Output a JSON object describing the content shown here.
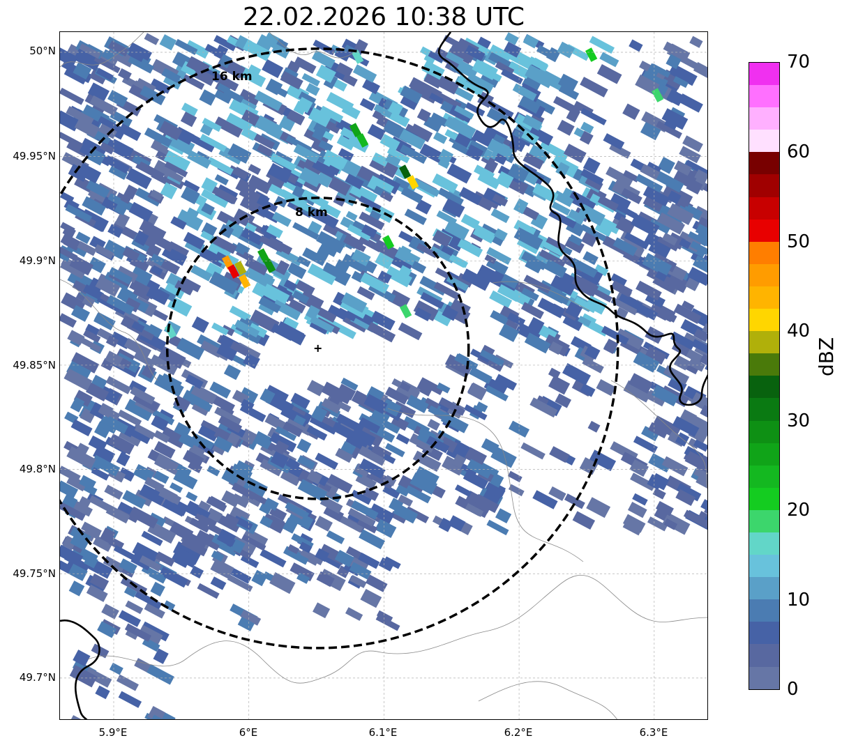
{
  "title": "22.02.2026 10:38 UTC",
  "map": {
    "center_lon": 6.095,
    "center_lat": 49.843,
    "lon_range": [
      5.86,
      6.34
    ],
    "lat_range": [
      49.68,
      50.01
    ],
    "ring_labels": [
      "16 km",
      "8 km"
    ],
    "ring_radii_km": [
      16,
      8
    ],
    "radar_site_marker": "plus-marker"
  },
  "axes": {
    "lat_ticks": [
      "50°N",
      "49.95°N",
      "49.9°N",
      "49.85°N",
      "49.8°N",
      "49.75°N",
      "49.7°N"
    ],
    "lon_ticks": [
      "5.9°E",
      "6°E",
      "6.1°E",
      "6.2°E",
      "6.3°E"
    ],
    "grid": "dashed-light"
  },
  "colorbar": {
    "title": "dBZ",
    "tick_labels": [
      "70",
      "60",
      "50",
      "40",
      "30",
      "20",
      "10",
      "0"
    ],
    "colors_low_to_high": [
      "#6676a6",
      "#5868a0",
      "#4662a6",
      "#4b7cb2",
      "#5aa0c8",
      "#68c2dc",
      "#62d6c8",
      "#3cd66c",
      "#14cc20",
      "#14b820",
      "#10a418",
      "#0e9014",
      "#0a7a12",
      "#08620e",
      "#4a7a0a",
      "#b0b00a",
      "#ffd600",
      "#ffb400",
      "#ff9c00",
      "#ff7e00",
      "#e80000",
      "#c80000",
      "#a00000",
      "#780000",
      "#ffe0ff",
      "#ffb0ff",
      "#ff70ff",
      "#f030f0"
    ]
  }
}
